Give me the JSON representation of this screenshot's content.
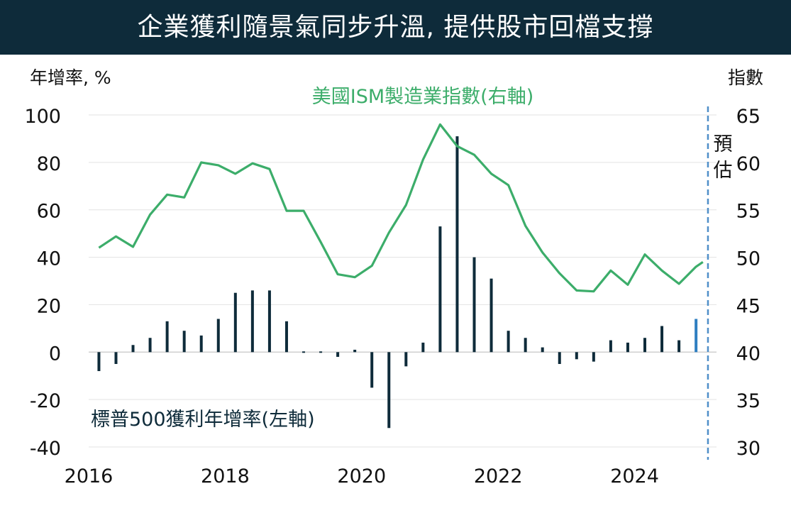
{
  "title": "企業獲利隨景氣同步升溫, 提供股市回檔支撐",
  "colors": {
    "title_bg": "#0e2b3a",
    "title_text": "#ffffff",
    "ism_line": "#3cad6a",
    "bar": "#0e2b3a",
    "forecast_bar": "#2f7fc1",
    "forecast_line": "#4f8fc9",
    "grid": "#e3e3e3",
    "text": "#111111"
  },
  "chart_data": {
    "type": "bar+line",
    "left_axis_label": "年增率, %",
    "right_axis_label": "指數",
    "left_ylim": [
      -40,
      100
    ],
    "left_ticks": [
      "100",
      "80",
      "60",
      "40",
      "20",
      "0",
      "-20",
      "-40"
    ],
    "right_ylim": [
      30,
      65
    ],
    "right_ticks": [
      "65",
      "60",
      "55",
      "50",
      "45",
      "40",
      "35",
      "30"
    ],
    "x_range": [
      2016,
      2025.2
    ],
    "x_ticks": [
      "2016",
      "2018",
      "2020",
      "2022",
      "2024"
    ],
    "grid": true,
    "forecast_label": "預估",
    "forecast_x": 2024.95,
    "series": [
      {
        "name": "標普500獲利年增率(左軸)",
        "type": "bar",
        "axis": "left",
        "x": [
          2016.15,
          2016.4,
          2016.65,
          2016.9,
          2017.15,
          2017.4,
          2017.65,
          2017.9,
          2018.15,
          2018.4,
          2018.65,
          2018.9,
          2019.15,
          2019.4,
          2019.65,
          2019.9,
          2020.15,
          2020.4,
          2020.65,
          2020.9,
          2021.15,
          2021.4,
          2021.65,
          2021.9,
          2022.15,
          2022.4,
          2022.65,
          2022.9,
          2023.15,
          2023.4,
          2023.65,
          2023.9,
          2024.15,
          2024.4,
          2024.65,
          2024.9
        ],
        "values": [
          -8,
          -5,
          3,
          6,
          13,
          9,
          7,
          14,
          25,
          26,
          26,
          13,
          0,
          0,
          -2,
          1,
          -15,
          -32,
          -6,
          4,
          53,
          91,
          40,
          31,
          9,
          6,
          2,
          -5,
          -3,
          -4,
          5,
          4,
          6,
          11,
          5,
          14
        ],
        "forecast_from_index": 35
      },
      {
        "name": "美國ISM製造業指數(右軸)",
        "type": "line",
        "axis": "right",
        "x": [
          2016.15,
          2016.4,
          2016.65,
          2016.9,
          2017.15,
          2017.4,
          2017.65,
          2017.9,
          2018.15,
          2018.4,
          2018.65,
          2018.9,
          2019.15,
          2019.4,
          2019.65,
          2019.9,
          2020.15,
          2020.4,
          2020.65,
          2020.9,
          2021.15,
          2021.4,
          2021.65,
          2021.9,
          2022.15,
          2022.4,
          2022.65,
          2022.9,
          2023.15,
          2023.4,
          2023.65,
          2023.9,
          2024.15,
          2024.4,
          2024.65,
          2024.9,
          2025.0
        ],
        "values": [
          51.0,
          52.2,
          51.1,
          54.5,
          56.6,
          56.3,
          60.0,
          59.7,
          58.8,
          59.9,
          59.3,
          54.9,
          54.9,
          51.6,
          48.2,
          47.9,
          49.1,
          52.6,
          55.5,
          60.3,
          64.0,
          61.7,
          60.8,
          58.8,
          57.6,
          53.3,
          50.5,
          48.3,
          46.5,
          46.4,
          48.6,
          47.1,
          50.3,
          48.6,
          47.2,
          49.0,
          49.5
        ]
      }
    ]
  }
}
